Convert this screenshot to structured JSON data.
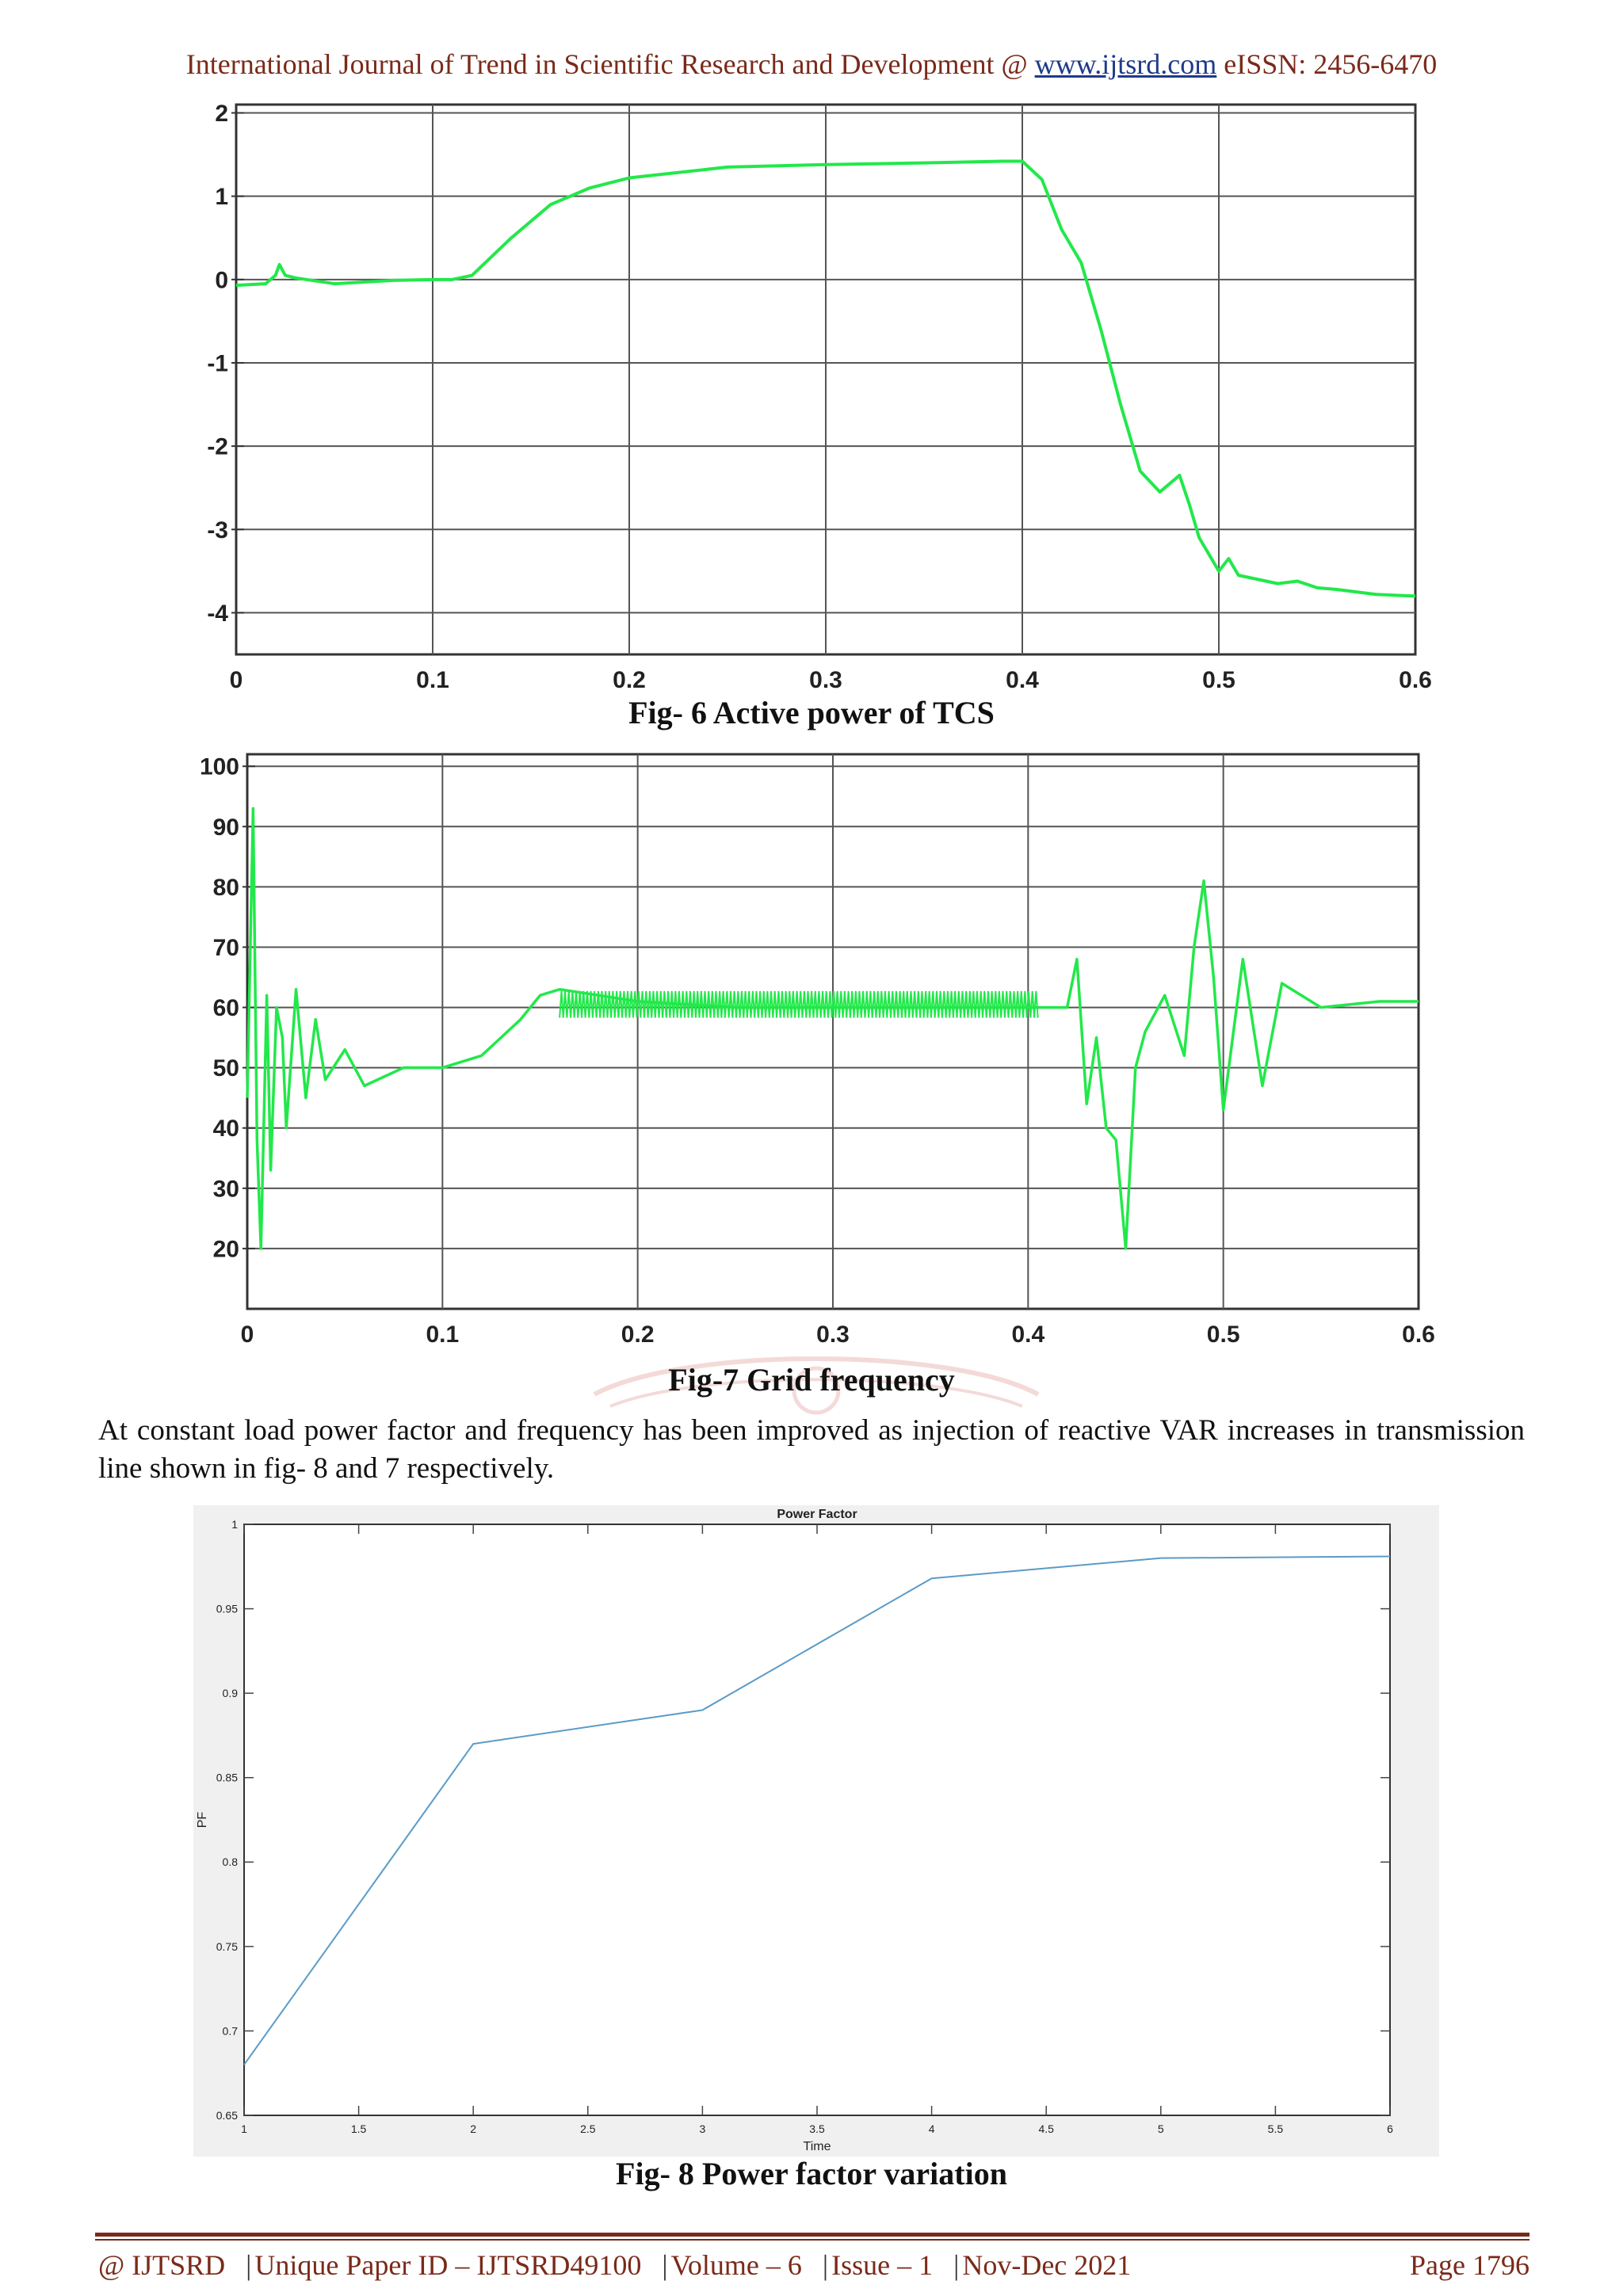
{
  "header": {
    "journal": "International Journal of Trend in Scientific Research and Development @ ",
    "url": "www.ijtsrd.com",
    "issn": " eISSN: 2456-6470"
  },
  "figures": {
    "fig6_caption": "Fig- 6 Active power of TCS",
    "fig7_caption": "Fig-7 Grid frequency",
    "fig8_caption": "Fig- 8 Power factor variation"
  },
  "body": {
    "paragraph": "At constant load power factor and frequency has been improved as injection of reactive VAR increases in transmission line shown in fig- 8 and 7 respectively."
  },
  "footer": {
    "org": "@ IJTSRD",
    "paper_id": "Unique Paper ID – IJTSRD49100",
    "volume": "Volume – 6",
    "issue": "Issue – 1",
    "date": "Nov-Dec 2021",
    "page": "Page 1796"
  },
  "colors": {
    "accent": "#7a2a1a",
    "trace": "#22e84a",
    "pf_line": "#5b9bc6"
  },
  "chart_data": [
    {
      "type": "line",
      "title": "",
      "xlabel": "",
      "ylabel": "",
      "xlim": [
        0,
        0.6
      ],
      "ylim": [
        -4.5,
        2.1
      ],
      "xticks": [
        "0",
        "0.1",
        "0.2",
        "0.3",
        "0.4",
        "0.5",
        "0.6"
      ],
      "yticks": [
        "2",
        "1",
        "0",
        "-1",
        "-2",
        "-3",
        "-4"
      ],
      "grid": true,
      "series": [
        {
          "name": "Active power",
          "x": [
            0,
            0.015,
            0.02,
            0.022,
            0.025,
            0.03,
            0.05,
            0.08,
            0.1,
            0.11,
            0.12,
            0.14,
            0.16,
            0.18,
            0.2,
            0.25,
            0.3,
            0.35,
            0.39,
            0.4,
            0.41,
            0.42,
            0.43,
            0.44,
            0.45,
            0.46,
            0.47,
            0.48,
            0.485,
            0.49,
            0.5,
            0.505,
            0.51,
            0.52,
            0.53,
            0.54,
            0.55,
            0.56,
            0.58,
            0.6
          ],
          "y": [
            -0.07,
            -0.05,
            0.05,
            0.18,
            0.05,
            0.02,
            -0.05,
            -0.01,
            0.0,
            0.0,
            0.05,
            0.5,
            0.9,
            1.1,
            1.22,
            1.35,
            1.38,
            1.4,
            1.42,
            1.42,
            1.2,
            0.6,
            0.2,
            -0.6,
            -1.5,
            -2.3,
            -2.55,
            -2.35,
            -2.7,
            -3.1,
            -3.5,
            -3.35,
            -3.55,
            -3.6,
            -3.65,
            -3.62,
            -3.7,
            -3.72,
            -3.78,
            -3.8
          ]
        }
      ]
    },
    {
      "type": "line",
      "title": "",
      "xlabel": "",
      "ylabel": "",
      "xlim": [
        0,
        0.6
      ],
      "ylim": [
        10,
        102
      ],
      "xticks": [
        "0",
        "0.1",
        "0.2",
        "0.3",
        "0.4",
        "0.5",
        "0.6"
      ],
      "yticks": [
        "100",
        "90",
        "80",
        "70",
        "60",
        "50",
        "40",
        "30",
        "20"
      ],
      "grid": true,
      "series": [
        {
          "name": "Grid frequency",
          "x": [
            0,
            0.003,
            0.005,
            0.007,
            0.01,
            0.012,
            0.015,
            0.018,
            0.02,
            0.025,
            0.03,
            0.035,
            0.04,
            0.05,
            0.06,
            0.08,
            0.1,
            0.12,
            0.13,
            0.14,
            0.15,
            0.16,
            0.2,
            0.25,
            0.3,
            0.35,
            0.4,
            0.41,
            0.42,
            0.425,
            0.43,
            0.435,
            0.44,
            0.445,
            0.45,
            0.455,
            0.46,
            0.47,
            0.48,
            0.485,
            0.49,
            0.495,
            0.5,
            0.51,
            0.52,
            0.53,
            0.55,
            0.58,
            0.6
          ],
          "y": [
            45,
            93,
            38,
            20,
            62,
            33,
            60,
            55,
            40,
            63,
            45,
            58,
            48,
            53,
            47,
            50,
            50,
            52,
            55,
            58,
            62,
            63,
            61,
            60,
            60,
            60,
            60,
            60,
            60,
            68,
            44,
            55,
            40,
            38,
            20,
            50,
            56,
            62,
            52,
            70,
            81,
            65,
            43,
            68,
            47,
            64,
            60,
            61,
            61
          ]
        }
      ]
    },
    {
      "type": "line",
      "title": "Power Factor",
      "xlabel": "Time",
      "ylabel": "PF",
      "xlim": [
        1,
        6
      ],
      "ylim": [
        0.65,
        1
      ],
      "xticks": [
        "1",
        "1.5",
        "2",
        "2.5",
        "3",
        "3.5",
        "4",
        "4.5",
        "5",
        "5.5",
        "6"
      ],
      "yticks": [
        "1",
        "0.95",
        "0.9",
        "0.85",
        "0.8",
        "0.75",
        "0.7",
        "0.65"
      ],
      "grid": false,
      "series": [
        {
          "name": "PF",
          "x": [
            1,
            2,
            3,
            4,
            5,
            6
          ],
          "y": [
            0.68,
            0.87,
            0.89,
            0.968,
            0.98,
            0.981
          ]
        }
      ]
    }
  ]
}
